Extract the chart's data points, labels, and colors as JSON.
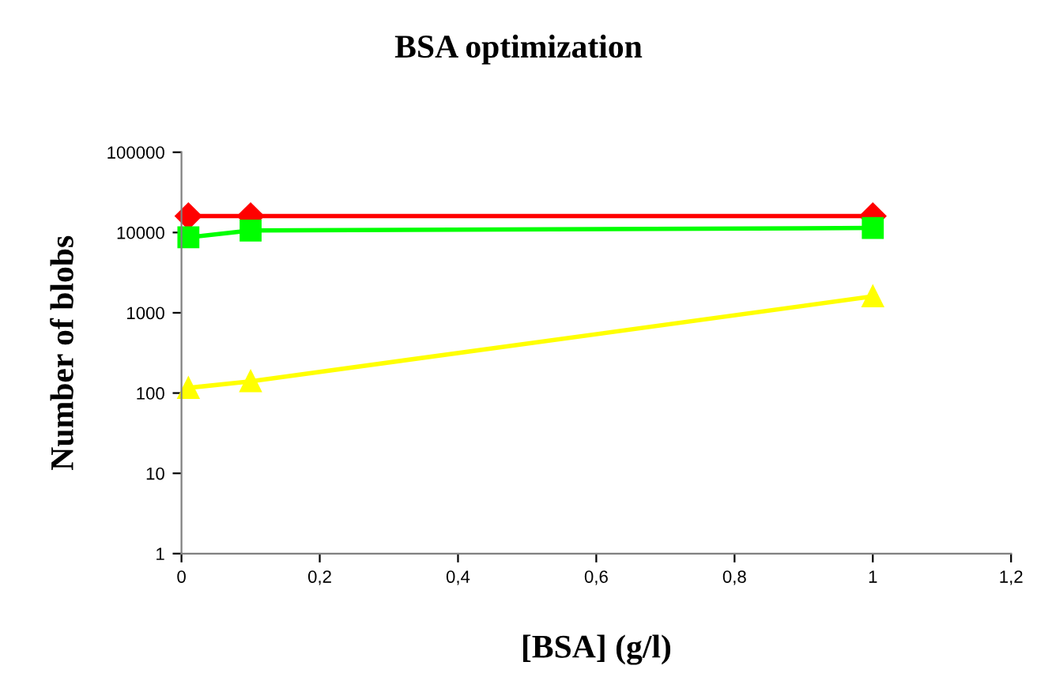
{
  "chart_data": {
    "type": "line",
    "title": "BSA optimization",
    "xlabel": "[BSA] (g/l)",
    "ylabel": "Number of blobs",
    "x": [
      0.01,
      0.1,
      1
    ],
    "series": [
      {
        "color": "#ff0000",
        "marker": "diamond",
        "values": [
          16000,
          16000,
          16000
        ]
      },
      {
        "color": "#00ff00",
        "marker": "square",
        "values": [
          8700,
          10600,
          11400
        ]
      },
      {
        "color": "#ffff00",
        "marker": "triangle",
        "values": [
          116,
          140,
          1600
        ]
      }
    ],
    "log": "y",
    "grid": false,
    "legend": false,
    "xlim": [
      0,
      1.2
    ],
    "xticks": [
      0,
      {
        "value": 0.2,
        "label": "0,2"
      },
      {
        "value": 0.4,
        "label": "0,4"
      },
      {
        "value": 0.6,
        "label": "0,6"
      },
      {
        "value": 0.8,
        "label": "0,8"
      },
      1,
      {
        "value": 1.2,
        "label": "1,2"
      }
    ],
    "ylim": [
      1,
      100000
    ],
    "yticks": [
      1,
      10,
      100,
      1000,
      10000,
      100000
    ]
  }
}
